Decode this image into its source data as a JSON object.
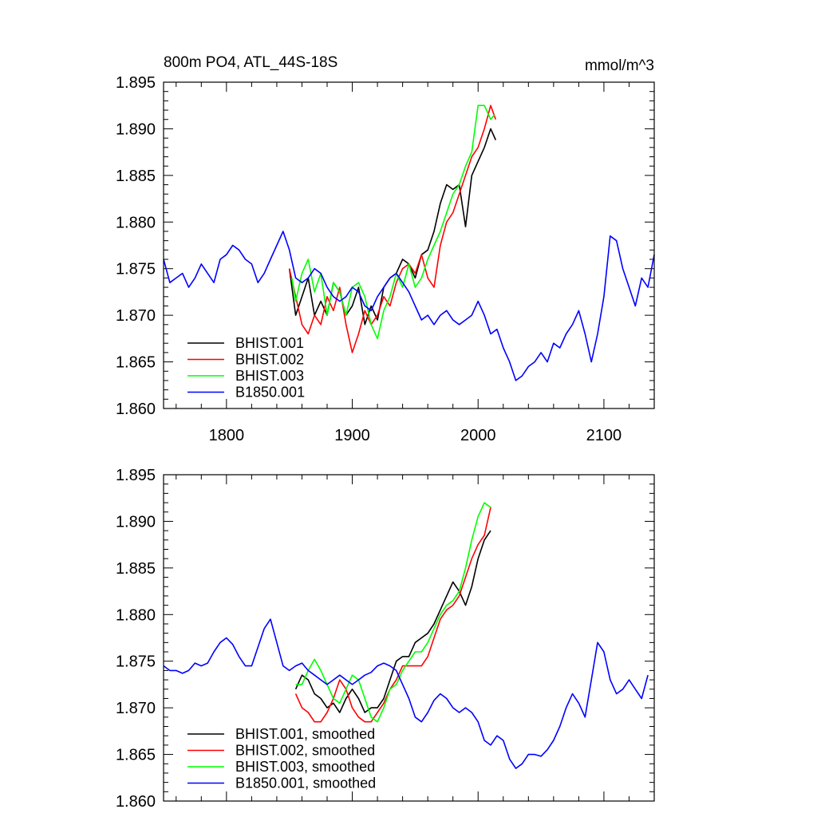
{
  "chart_data": [
    {
      "type": "line",
      "title": "800m PO4, ATL_44S-18S",
      "units": "mmol/m^3",
      "xlim": [
        1750,
        2140
      ],
      "ylim": [
        1.86,
        1.895
      ],
      "xticks": [
        1800,
        1900,
        2000,
        2100
      ],
      "xtick_labels": [
        "1800",
        "1900",
        "2000",
        "2100"
      ],
      "yticks": [
        1.86,
        1.865,
        1.87,
        1.875,
        1.88,
        1.885,
        1.89,
        1.895
      ],
      "ytick_labels": [
        "1.860",
        "1.865",
        "1.870",
        "1.875",
        "1.880",
        "1.885",
        "1.890",
        "1.895"
      ],
      "legend_position": "bottom-left",
      "grid": false,
      "series": [
        {
          "name": "BHIST.001",
          "color": "#000000",
          "x": [
            1850,
            1855,
            1860,
            1865,
            1870,
            1875,
            1880,
            1885,
            1890,
            1895,
            1900,
            1905,
            1910,
            1915,
            1920,
            1925,
            1930,
            1935,
            1940,
            1945,
            1950,
            1955,
            1960,
            1965,
            1970,
            1975,
            1980,
            1985,
            1990,
            1995,
            2000,
            2005,
            2010,
            2014
          ],
          "y": [
            1.875,
            1.87,
            1.872,
            1.874,
            1.87,
            1.8715,
            1.87,
            1.8735,
            1.8725,
            1.87,
            1.871,
            1.873,
            1.869,
            1.871,
            1.8695,
            1.873,
            1.874,
            1.8745,
            1.876,
            1.8755,
            1.874,
            1.8765,
            1.877,
            1.879,
            1.882,
            1.884,
            1.8835,
            1.884,
            1.8795,
            1.885,
            1.8865,
            1.888,
            1.89,
            1.8888
          ]
        },
        {
          "name": "BHIST.002",
          "color": "#ff0000",
          "x": [
            1850,
            1855,
            1860,
            1865,
            1870,
            1875,
            1880,
            1885,
            1890,
            1895,
            1900,
            1905,
            1910,
            1915,
            1920,
            1925,
            1930,
            1935,
            1940,
            1945,
            1950,
            1955,
            1960,
            1965,
            1970,
            1975,
            1980,
            1985,
            1990,
            1995,
            2000,
            2005,
            2010,
            2014
          ],
          "y": [
            1.875,
            1.872,
            1.869,
            1.868,
            1.87,
            1.869,
            1.872,
            1.8705,
            1.873,
            1.869,
            1.866,
            1.868,
            1.8705,
            1.869,
            1.87,
            1.872,
            1.871,
            1.8735,
            1.875,
            1.8755,
            1.8745,
            1.8765,
            1.874,
            1.873,
            1.8775,
            1.88,
            1.881,
            1.883,
            1.885,
            1.887,
            1.888,
            1.89,
            1.8925,
            1.891
          ]
        },
        {
          "name": "BHIST.003",
          "color": "#00ff00",
          "x": [
            1852,
            1855,
            1860,
            1865,
            1870,
            1875,
            1880,
            1885,
            1890,
            1895,
            1900,
            1905,
            1910,
            1915,
            1920,
            1925,
            1930,
            1935,
            1940,
            1945,
            1950,
            1955,
            1960,
            1965,
            1970,
            1975,
            1980,
            1985,
            1990,
            1995,
            2000,
            2005,
            2010,
            2013
          ],
          "y": [
            1.874,
            1.8715,
            1.8745,
            1.876,
            1.8725,
            1.8745,
            1.87,
            1.8735,
            1.8725,
            1.87,
            1.873,
            1.8735,
            1.872,
            1.869,
            1.8675,
            1.8705,
            1.872,
            1.8745,
            1.873,
            1.8755,
            1.873,
            1.874,
            1.876,
            1.8775,
            1.879,
            1.881,
            1.883,
            1.884,
            1.886,
            1.8875,
            1.8925,
            1.8925,
            1.891,
            1.8915
          ]
        },
        {
          "name": "B1850.001",
          "color": "#0000ff",
          "x": [
            1750,
            1755,
            1760,
            1765,
            1770,
            1775,
            1780,
            1785,
            1790,
            1795,
            1800,
            1805,
            1810,
            1815,
            1820,
            1825,
            1830,
            1835,
            1840,
            1845,
            1850,
            1855,
            1860,
            1865,
            1870,
            1875,
            1880,
            1885,
            1890,
            1895,
            1900,
            1905,
            1910,
            1915,
            1920,
            1925,
            1930,
            1935,
            1940,
            1945,
            1950,
            1955,
            1960,
            1965,
            1970,
            1975,
            1980,
            1985,
            1990,
            1995,
            2000,
            2005,
            2010,
            2015,
            2020,
            2025,
            2030,
            2035,
            2040,
            2045,
            2050,
            2055,
            2060,
            2065,
            2070,
            2075,
            2080,
            2085,
            2090,
            2095,
            2100,
            2105,
            2110,
            2115,
            2120,
            2125,
            2130,
            2135,
            2140
          ],
          "y": [
            1.876,
            1.8735,
            1.874,
            1.8745,
            1.873,
            1.874,
            1.8755,
            1.8745,
            1.8735,
            1.876,
            1.8765,
            1.8775,
            1.877,
            1.876,
            1.8755,
            1.8735,
            1.8745,
            1.876,
            1.8775,
            1.879,
            1.877,
            1.874,
            1.8735,
            1.874,
            1.875,
            1.8745,
            1.873,
            1.872,
            1.8715,
            1.872,
            1.873,
            1.8725,
            1.871,
            1.8705,
            1.872,
            1.873,
            1.874,
            1.8745,
            1.8735,
            1.8725,
            1.871,
            1.8695,
            1.87,
            1.869,
            1.87,
            1.8705,
            1.8695,
            1.869,
            1.8695,
            1.87,
            1.8715,
            1.87,
            1.868,
            1.8685,
            1.8665,
            1.865,
            1.863,
            1.8635,
            1.8645,
            1.865,
            1.866,
            1.865,
            1.867,
            1.8665,
            1.868,
            1.869,
            1.8705,
            1.868,
            1.865,
            1.868,
            1.872,
            1.8785,
            1.878,
            1.875,
            1.873,
            1.871,
            1.874,
            1.873,
            1.8765
          ]
        }
      ]
    },
    {
      "type": "line",
      "title": "",
      "units": "",
      "xlim": [
        1750,
        2140
      ],
      "ylim": [
        1.86,
        1.895
      ],
      "xticks": [
        1800,
        1900,
        2000,
        2100
      ],
      "xtick_labels": [
        "",
        "",
        "",
        ""
      ],
      "yticks": [
        1.86,
        1.865,
        1.87,
        1.875,
        1.88,
        1.885,
        1.89,
        1.895
      ],
      "ytick_labels": [
        "1.860",
        "1.865",
        "1.870",
        "1.875",
        "1.880",
        "1.885",
        "1.890",
        "1.895"
      ],
      "legend_position": "bottom-left",
      "grid": false,
      "series": [
        {
          "name": "BHIST.001, smoothed",
          "color": "#000000",
          "x": [
            1855,
            1860,
            1865,
            1870,
            1875,
            1880,
            1885,
            1890,
            1895,
            1900,
            1905,
            1910,
            1915,
            1920,
            1925,
            1930,
            1935,
            1940,
            1945,
            1950,
            1955,
            1960,
            1965,
            1970,
            1975,
            1980,
            1985,
            1990,
            1995,
            2000,
            2005,
            2010
          ],
          "y": [
            1.872,
            1.8735,
            1.873,
            1.8715,
            1.871,
            1.87,
            1.8705,
            1.8695,
            1.871,
            1.872,
            1.871,
            1.8695,
            1.87,
            1.87,
            1.871,
            1.873,
            1.875,
            1.8755,
            1.8755,
            1.877,
            1.8775,
            1.878,
            1.879,
            1.8805,
            1.882,
            1.8835,
            1.8825,
            1.881,
            1.883,
            1.886,
            1.888,
            1.889
          ]
        },
        {
          "name": "BHIST.002, smoothed",
          "color": "#ff0000",
          "x": [
            1855,
            1860,
            1865,
            1870,
            1875,
            1880,
            1885,
            1890,
            1895,
            1900,
            1905,
            1910,
            1915,
            1920,
            1925,
            1930,
            1935,
            1940,
            1945,
            1950,
            1955,
            1960,
            1965,
            1970,
            1975,
            1980,
            1985,
            1990,
            1995,
            2000,
            2005,
            2010
          ],
          "y": [
            1.8715,
            1.87,
            1.8695,
            1.8685,
            1.8685,
            1.8695,
            1.871,
            1.873,
            1.872,
            1.87,
            1.869,
            1.8685,
            1.8685,
            1.8695,
            1.8705,
            1.872,
            1.873,
            1.8745,
            1.8745,
            1.8745,
            1.8745,
            1.8755,
            1.8775,
            1.8795,
            1.8805,
            1.881,
            1.882,
            1.884,
            1.886,
            1.8875,
            1.8885,
            1.8915
          ]
        },
        {
          "name": "BHIST.003, smoothed",
          "color": "#00ff00",
          "x": [
            1855,
            1860,
            1865,
            1870,
            1875,
            1880,
            1885,
            1890,
            1895,
            1900,
            1905,
            1910,
            1915,
            1920,
            1925,
            1930,
            1935,
            1940,
            1945,
            1950,
            1955,
            1960,
            1965,
            1970,
            1975,
            1980,
            1985,
            1990,
            1995,
            2000,
            2005,
            2010
          ],
          "y": [
            1.8725,
            1.8725,
            1.874,
            1.8752,
            1.874,
            1.8725,
            1.871,
            1.8705,
            1.872,
            1.8735,
            1.873,
            1.871,
            1.869,
            1.8685,
            1.87,
            1.872,
            1.8725,
            1.874,
            1.875,
            1.876,
            1.876,
            1.877,
            1.8785,
            1.88,
            1.881,
            1.8815,
            1.8825,
            1.885,
            1.888,
            1.8905,
            1.892,
            1.8915
          ]
        },
        {
          "name": "B1850.001, smoothed",
          "color": "#0000ff",
          "x": [
            1750,
            1755,
            1760,
            1765,
            1770,
            1775,
            1780,
            1785,
            1790,
            1795,
            1800,
            1805,
            1810,
            1815,
            1820,
            1825,
            1830,
            1835,
            1840,
            1845,
            1850,
            1855,
            1860,
            1865,
            1870,
            1875,
            1880,
            1885,
            1890,
            1895,
            1900,
            1905,
            1910,
            1915,
            1920,
            1925,
            1930,
            1935,
            1940,
            1945,
            1950,
            1955,
            1960,
            1965,
            1970,
            1975,
            1980,
            1985,
            1990,
            1995,
            2000,
            2005,
            2010,
            2015,
            2020,
            2025,
            2030,
            2035,
            2040,
            2045,
            2050,
            2055,
            2060,
            2065,
            2070,
            2075,
            2080,
            2085,
            2090,
            2095,
            2100,
            2105,
            2110,
            2115,
            2120,
            2125,
            2130,
            2135
          ],
          "y": [
            1.8745,
            1.874,
            1.874,
            1.8737,
            1.874,
            1.8748,
            1.8745,
            1.8748,
            1.876,
            1.877,
            1.8775,
            1.8768,
            1.8755,
            1.8745,
            1.8745,
            1.8765,
            1.8785,
            1.8795,
            1.877,
            1.8745,
            1.874,
            1.8745,
            1.8748,
            1.874,
            1.8735,
            1.873,
            1.8725,
            1.873,
            1.8735,
            1.873,
            1.8725,
            1.873,
            1.8735,
            1.8738,
            1.8745,
            1.8748,
            1.8745,
            1.874,
            1.8725,
            1.871,
            1.869,
            1.8685,
            1.8695,
            1.8708,
            1.8715,
            1.871,
            1.87,
            1.8695,
            1.87,
            1.8695,
            1.8685,
            1.8665,
            1.866,
            1.867,
            1.8665,
            1.8645,
            1.8635,
            1.864,
            1.865,
            1.865,
            1.8648,
            1.8655,
            1.8665,
            1.868,
            1.87,
            1.8715,
            1.8705,
            1.869,
            1.873,
            1.877,
            1.876,
            1.873,
            1.8715,
            1.872,
            1.873,
            1.872,
            1.871,
            1.8735
          ]
        }
      ]
    }
  ]
}
